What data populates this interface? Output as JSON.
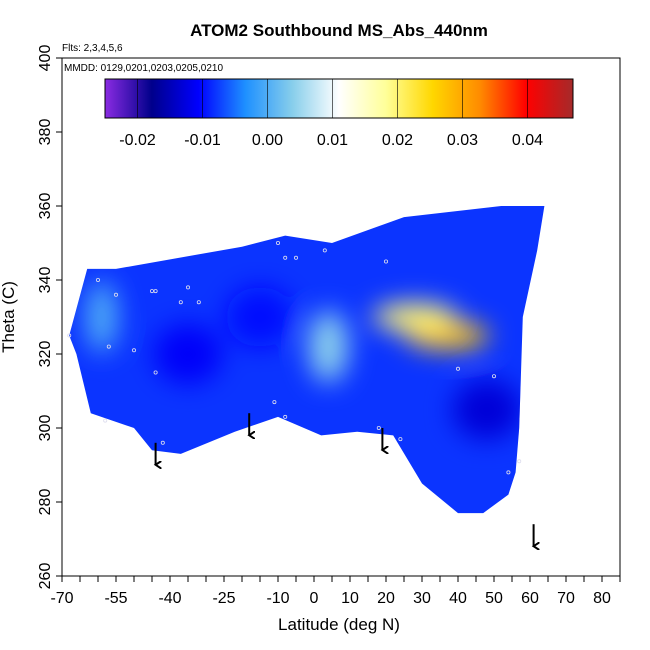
{
  "chart_data": {
    "type": "heatmap",
    "title": "ATOM2 Southbound MS_Abs_440nm",
    "annotations": {
      "flights": "Flts: 2,3,4,5,6",
      "dates": "MMDD: 0129,0201,0203,0205,0210"
    },
    "xlabel": "Latitude (deg N)",
    "ylabel": "Theta (C)",
    "xlim": [
      -70,
      85
    ],
    "ylim": [
      260,
      400
    ],
    "x_ticks_labeled": [
      "-70",
      "-55",
      "-40",
      "-25",
      "-10",
      "0",
      "10",
      "20",
      "30",
      "40",
      "50",
      "60",
      "70",
      "80"
    ],
    "x_tick_values": [
      -70,
      -55,
      -40,
      -25,
      -10,
      0,
      10,
      20,
      30,
      40,
      50,
      60,
      70,
      80
    ],
    "y_ticks": [
      260,
      280,
      300,
      320,
      340,
      360,
      380,
      400
    ],
    "colorbar": {
      "range": [
        -0.025,
        0.047
      ],
      "tick_labels": [
        "-0.02",
        "-0.01",
        "0.00",
        "0.01",
        "0.02",
        "0.03",
        "0.04"
      ],
      "tick_values": [
        -0.02,
        -0.01,
        0.0,
        0.01,
        0.02,
        0.03,
        0.04
      ],
      "colors": [
        "#8a2be2",
        "#00008b",
        "#0000ff",
        "#1e90ff",
        "#87ceeb",
        "#ffffff",
        "#ffff99",
        "#ffd700",
        "#ff8c00",
        "#ff0000",
        "#a52a2a"
      ]
    },
    "field_outline": [
      [
        -68,
        325
      ],
      [
        -63,
        343
      ],
      [
        -55,
        343
      ],
      [
        -20,
        349
      ],
      [
        -8,
        352
      ],
      [
        5,
        350
      ],
      [
        25,
        357
      ],
      [
        52,
        360
      ],
      [
        64,
        360
      ],
      [
        62,
        348
      ],
      [
        58,
        330
      ],
      [
        57,
        300
      ],
      [
        56,
        288
      ],
      [
        54,
        282
      ],
      [
        47,
        277
      ],
      [
        40,
        277
      ],
      [
        30,
        285
      ],
      [
        22,
        298
      ],
      [
        12,
        299
      ],
      [
        2,
        298
      ],
      [
        -10,
        303
      ],
      [
        -22,
        299
      ],
      [
        -37,
        293
      ],
      [
        -45,
        294
      ],
      [
        -50,
        300
      ],
      [
        -62,
        304
      ],
      [
        -66,
        320
      ]
    ],
    "field_features": [
      {
        "type": "high",
        "center": [
          37,
          325
        ],
        "value": 0.027
      },
      {
        "type": "high",
        "center": [
          28,
          330
        ],
        "value": 0.02
      },
      {
        "type": "moderate",
        "center": [
          4,
          322
        ],
        "value": 0.004
      },
      {
        "type": "moderate",
        "center": [
          -59,
          330
        ],
        "value": 0.0
      },
      {
        "type": "low",
        "center": [
          -35,
          320
        ],
        "value": -0.011
      },
      {
        "type": "low",
        "center": [
          48,
          305
        ],
        "value": -0.013
      },
      {
        "type": "low",
        "center": [
          -15,
          330
        ],
        "value": -0.01
      }
    ],
    "sample_points": [
      [
        -68,
        325
      ],
      [
        -60,
        340
      ],
      [
        -55,
        336
      ],
      [
        -45,
        337
      ],
      [
        -44,
        337
      ],
      [
        -37,
        334
      ],
      [
        -35,
        338
      ],
      [
        -32,
        334
      ],
      [
        -57,
        322
      ],
      [
        -50,
        321
      ],
      [
        -44,
        315
      ],
      [
        -42,
        296
      ],
      [
        -58,
        302
      ],
      [
        -10,
        350
      ],
      [
        -8,
        346
      ],
      [
        -5,
        346
      ],
      [
        3,
        348
      ],
      [
        20,
        345
      ],
      [
        40,
        316
      ],
      [
        50,
        314
      ],
      [
        -11,
        307
      ],
      [
        -8,
        303
      ],
      [
        18,
        300
      ],
      [
        24,
        297
      ],
      [
        54,
        288
      ],
      [
        57,
        291
      ]
    ],
    "arrows": [
      {
        "lat": -44,
        "theta": 296
      },
      {
        "lat": -18,
        "theta": 304
      },
      {
        "lat": 19,
        "theta": 300
      },
      {
        "lat": 61,
        "theta": 274
      }
    ]
  }
}
